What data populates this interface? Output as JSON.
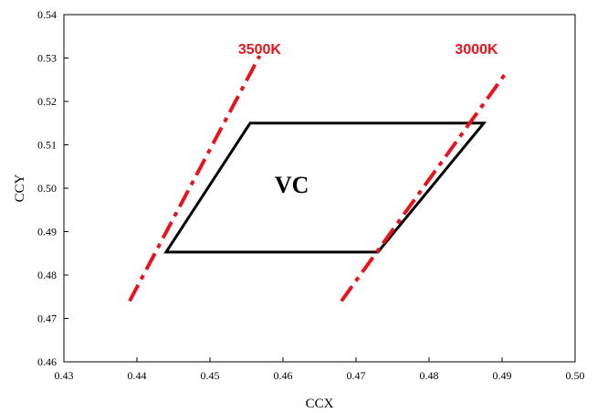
{
  "chart_data": {
    "type": "line",
    "title": "",
    "xlabel": "CCX",
    "ylabel": "CCY",
    "xlim": [
      0.43,
      0.5
    ],
    "ylim": [
      0.46,
      0.54
    ],
    "xticks": [
      "0.43",
      "0.44",
      "0.45",
      "0.46",
      "0.47",
      "0.48",
      "0.49",
      "0.50"
    ],
    "yticks": [
      "0.46",
      "0.47",
      "0.48",
      "0.49",
      "0.50",
      "0.51",
      "0.52",
      "0.53",
      "0.54"
    ],
    "grid": false,
    "series": [
      {
        "name": "3500K",
        "color": "#e8141b",
        "style": "dash-dot",
        "points": [
          [
            0.439,
            0.474
          ],
          [
            0.4568,
            0.5305
          ]
        ]
      },
      {
        "name": "3000K",
        "color": "#e8141b",
        "style": "dash-dot",
        "points": [
          [
            0.468,
            0.474
          ],
          [
            0.4905,
            0.5265
          ]
        ]
      },
      {
        "name": "VC",
        "color": "#000000",
        "style": "solid",
        "closed": true,
        "points": [
          [
            0.444,
            0.4853
          ],
          [
            0.4555,
            0.515
          ],
          [
            0.4875,
            0.515
          ],
          [
            0.473,
            0.4853
          ]
        ]
      }
    ],
    "annotations": [
      {
        "text": "3500K",
        "color": "#e8141b",
        "x": 0.4568,
        "y": 0.531
      },
      {
        "text": "3000K",
        "color": "#e8141b",
        "x": 0.4865,
        "y": 0.531
      },
      {
        "text": "VC",
        "color": "#000000",
        "x": 0.4612,
        "y": 0.499
      }
    ]
  }
}
